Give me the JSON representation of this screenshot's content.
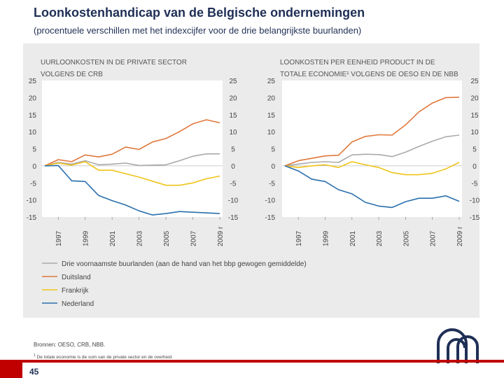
{
  "header": {
    "title": "Loonkostenhandicap van de Belgische ondernemingen",
    "subtitle": "(procentuele verschillen met het indexcijfer voor de drie belangrijkste buurlanden)"
  },
  "colors": {
    "background_panel": "#ebebeb",
    "plot_area": "#ffffff",
    "buurlanden": "#aaaaaa",
    "duitsland": "#e0783c",
    "frankrijk": "#f0c419",
    "nederland": "#2a6fad",
    "brand_red": "#c00000",
    "title_blue": "#1f2f55"
  },
  "legend": [
    {
      "label": "Drie voornaamste buurlanden (aan de hand van het bbp gewogen gemiddelde)",
      "color": "#aaaaaa"
    },
    {
      "label": "Duitsland",
      "color": "#e0783c"
    },
    {
      "label": "Frankrijk",
      "color": "#f0c419"
    },
    {
      "label": "Nederland",
      "color": "#2a6fad"
    }
  ],
  "chart_data": [
    {
      "type": "line",
      "title_lines": [
        "UURLOONKOSTEN IN DE PRIVATE SECTOR",
        "VOLGENS DE CRB"
      ],
      "x": [
        1996,
        1997,
        1998,
        1999,
        2000,
        2001,
        2002,
        2003,
        2004,
        2005,
        2006,
        2007,
        2008,
        2009
      ],
      "tick_labels": [
        "1997",
        "1999",
        "2001",
        "2003",
        "2005",
        "2007",
        "2009 r"
      ],
      "tick_years": [
        1997,
        1999,
        2001,
        2003,
        2005,
        2007,
        2009
      ],
      "ylim": [
        -15,
        25
      ],
      "yticks": [
        "25",
        "20",
        "15",
        "10",
        "5",
        "0",
        "-5",
        "-10",
        "-15"
      ],
      "ytick_values": [
        25,
        20,
        15,
        10,
        5,
        0,
        -5,
        -10,
        -15
      ],
      "series": [
        {
          "name": "Drie voornaamste buurlanden",
          "color": "#aaaaaa",
          "values": [
            0,
            1.0,
            0.5,
            1.5,
            0.3,
            0.5,
            0.8,
            0.1,
            0.2,
            0.3,
            1.5,
            2.8,
            3.5,
            3.5
          ]
        },
        {
          "name": "Duitsland",
          "color": "#e0783c",
          "values": [
            0,
            1.8,
            1.2,
            3.2,
            2.6,
            3.4,
            5.5,
            4.8,
            7.0,
            8.0,
            10.0,
            12.3,
            13.5,
            12.6
          ]
        },
        {
          "name": "Frankrijk",
          "color": "#f0c419",
          "values": [
            0,
            0.8,
            0.2,
            1.2,
            -1.3,
            -1.3,
            -2.3,
            -3.3,
            -4.5,
            -5.7,
            -5.7,
            -5.0,
            -3.8,
            -3.0
          ]
        },
        {
          "name": "Nederland",
          "color": "#2a6fad",
          "values": [
            0,
            0.1,
            -4.4,
            -4.6,
            -8.7,
            -10.2,
            -11.5,
            -13.2,
            -14.4,
            -14.0,
            -13.4,
            -13.6,
            -13.8,
            -14.0
          ]
        }
      ]
    },
    {
      "type": "line",
      "title_lines": [
        "LOONKOSTEN PER EENHEID PRODUCT IN DE",
        "TOTALE ECONOMIE¹ VOLGENS DE OESO EN DE NBB"
      ],
      "x": [
        1996,
        1997,
        1998,
        1999,
        2000,
        2001,
        2002,
        2003,
        2004,
        2005,
        2006,
        2007,
        2008,
        2009
      ],
      "tick_labels": [
        "1997",
        "1999",
        "2001",
        "2003",
        "2005",
        "2007",
        "2009 r"
      ],
      "tick_years": [
        1997,
        1999,
        2001,
        2003,
        2005,
        2007,
        2009
      ],
      "ylim": [
        -15,
        25
      ],
      "yticks": [
        "25",
        "20",
        "15",
        "10",
        "5",
        "0",
        "-5",
        "-10",
        "-15"
      ],
      "ytick_values": [
        25,
        20,
        15,
        10,
        5,
        0,
        -5,
        -10,
        -15
      ],
      "series": [
        {
          "name": "Drie voornaamste buurlanden",
          "color": "#aaaaaa",
          "values": [
            0,
            0.5,
            1.0,
            1.2,
            1.0,
            3.2,
            3.4,
            3.3,
            2.7,
            4.0,
            5.7,
            7.2,
            8.5,
            9.0
          ]
        },
        {
          "name": "Duitsland",
          "color": "#e0783c",
          "values": [
            0,
            1.5,
            2.2,
            2.9,
            3.1,
            7.0,
            8.6,
            9.1,
            9.0,
            12.0,
            15.8,
            18.4,
            20.0,
            20.1
          ]
        },
        {
          "name": "Frankrijk",
          "color": "#f0c419",
          "values": [
            0,
            -0.5,
            0.0,
            0.3,
            -0.5,
            1.2,
            0.3,
            -0.5,
            -2.0,
            -2.6,
            -2.6,
            -2.2,
            -0.9,
            1.0
          ]
        },
        {
          "name": "Nederland",
          "color": "#2a6fad",
          "values": [
            0,
            -1.5,
            -3.9,
            -4.6,
            -7.0,
            -8.2,
            -10.7,
            -11.8,
            -12.2,
            -10.5,
            -9.5,
            -9.5,
            -8.8,
            -10.4
          ]
        }
      ]
    }
  ],
  "source": "Bronnen: OESO, CRB, NBB.",
  "footnote_marker": "1",
  "footnote": "De totale economie is de som van de private sector en de overheid.",
  "page_number": "45"
}
